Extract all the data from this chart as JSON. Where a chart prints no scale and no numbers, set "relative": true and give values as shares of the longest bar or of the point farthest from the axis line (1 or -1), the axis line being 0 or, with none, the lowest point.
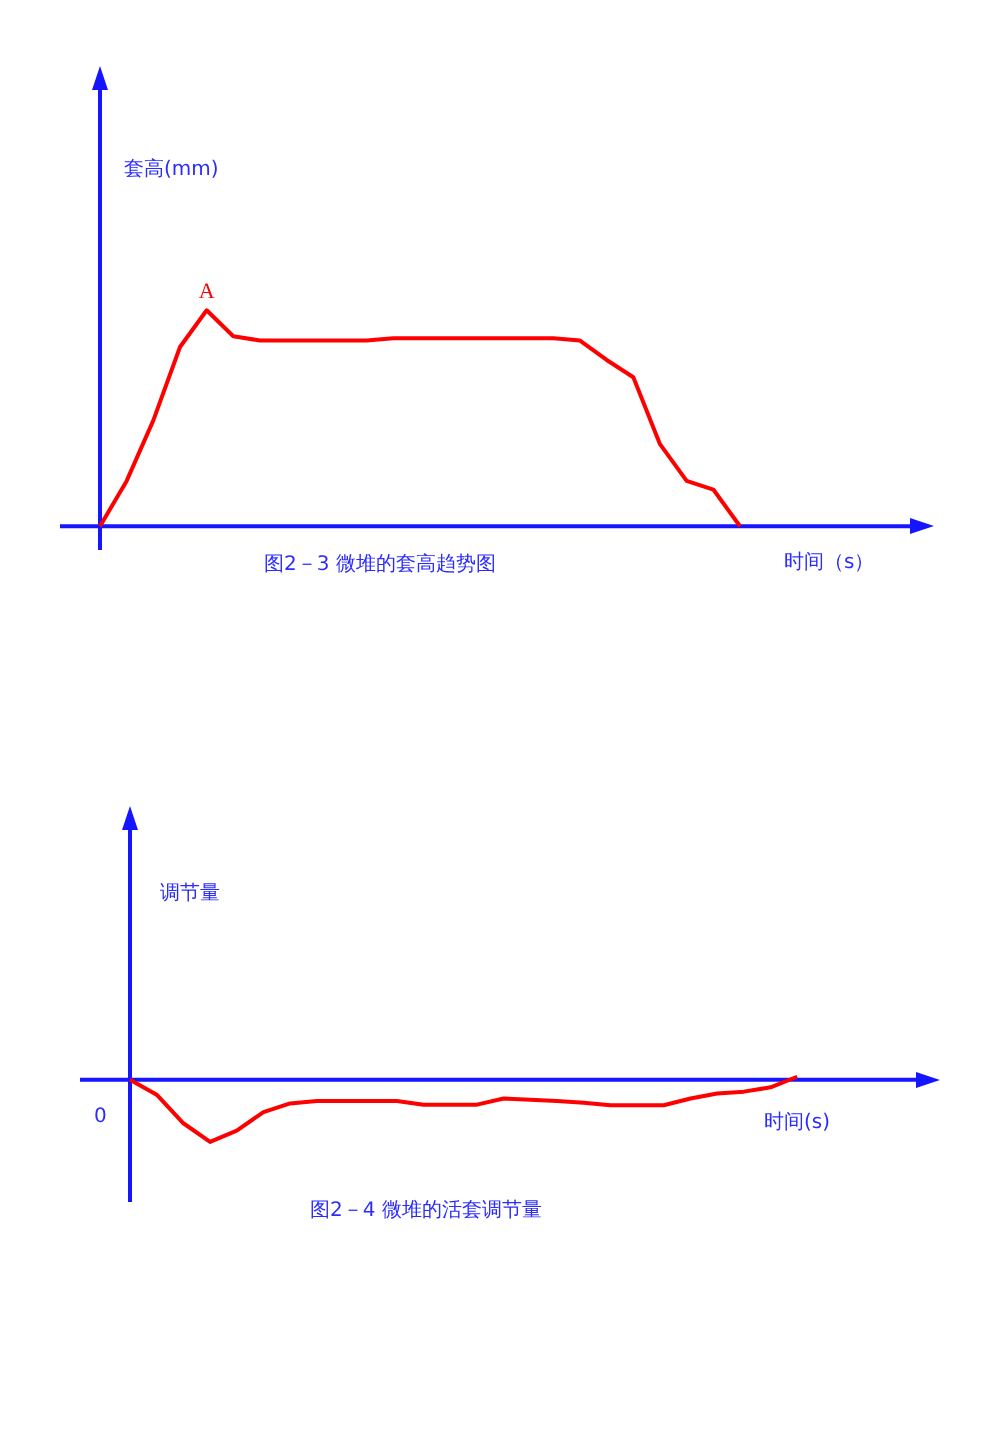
{
  "chart_data": [
    {
      "type": "line",
      "relative": true,
      "title": "图2－3 微堆的套高趋势图",
      "xlabel": "时间（s）",
      "ylabel": "套高(mm)",
      "categories": [
        null,
        null,
        null,
        null,
        null,
        null,
        null,
        null,
        null,
        null,
        null,
        null,
        null,
        null,
        null,
        null,
        null,
        null,
        null,
        null,
        null,
        null,
        null,
        null,
        null,
        null,
        null,
        null,
        null,
        null,
        null
      ],
      "series": [
        {
          "color": "#ff0000",
          "values": [
            0,
            0.21,
            0.49,
            0.83,
            1,
            0.88,
            0.86,
            0.86,
            0.86,
            0.86,
            0.86,
            0.87,
            0.87,
            0.87,
            0.87,
            0.87,
            0.87,
            0.87,
            0.86,
            0.77,
            0.69,
            0.38,
            0.21,
            0.17,
            0,
            null,
            null,
            null,
            null,
            null,
            null
          ]
        }
      ],
      "annotations": [
        {
          "text": "A",
          "y": 1
        }
      ]
    },
    {
      "type": "line",
      "relative": true,
      "title": "图2－4 微堆的活套调节量",
      "xlabel": "时间(s)",
      "ylabel": "调节量",
      "categories": [
        null,
        null,
        null,
        null,
        null,
        null,
        null,
        null,
        null,
        null,
        null,
        null,
        null,
        null,
        null,
        null,
        null,
        null,
        null,
        null,
        null,
        null,
        null,
        null,
        null,
        null,
        null,
        null,
        null,
        null
      ],
      "series": [
        {
          "color": "#ff0000",
          "values": [
            0,
            -0.24,
            -0.7,
            -1,
            -0.82,
            -0.52,
            -0.38,
            -0.34,
            -0.34,
            -0.34,
            -0.34,
            -0.4,
            -0.4,
            -0.4,
            -0.3,
            -0.32,
            -0.34,
            -0.37,
            -0.41,
            -0.41,
            -0.41,
            -0.3,
            -0.22,
            -0.19,
            -0.12,
            0.05,
            null,
            null,
            null,
            null
          ]
        }
      ],
      "annotations": [
        "0"
      ]
    }
  ]
}
